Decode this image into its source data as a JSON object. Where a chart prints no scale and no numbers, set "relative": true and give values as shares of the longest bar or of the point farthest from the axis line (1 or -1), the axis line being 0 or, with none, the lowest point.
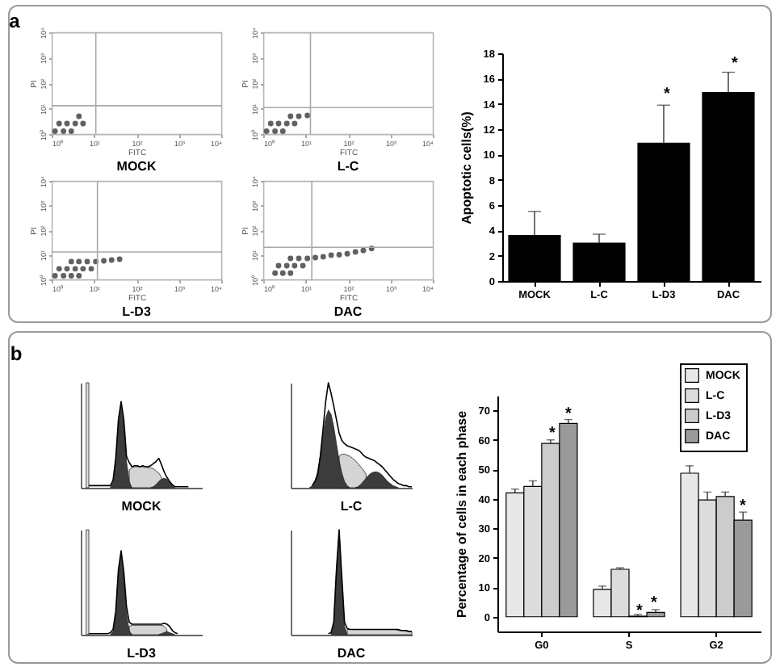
{
  "chart_data": [
    {
      "type": "scatter",
      "title": "MOCK",
      "xlabel": "FITC",
      "ylabel": "PI",
      "annotations": [
        "a"
      ],
      "log": "xy",
      "xlim": [
        1,
        10000
      ],
      "ylim": [
        1,
        10000
      ],
      "xticks": [
        {
          "value": 1,
          "label": "10⁰"
        },
        {
          "value": 10,
          "label": "10¹"
        },
        {
          "value": 100,
          "label": "10²"
        },
        {
          "value": 1000,
          "label": "10³"
        },
        {
          "value": 10000,
          "label": "10⁴"
        }
      ],
      "yticks": [
        {
          "value": 1,
          "label": "10⁰"
        },
        {
          "value": 10,
          "label": "10¹"
        },
        {
          "value": 100,
          "label": "10²"
        },
        {
          "value": 1000,
          "label": "10³"
        },
        {
          "value": 10000,
          "label": "10⁴"
        }
      ],
      "marker": "circle",
      "color": "#505050",
      "ref_lines": [
        {
          "axis": "x",
          "value": 11
        },
        {
          "axis": "y",
          "value": 13
        }
      ],
      "x": [
        1.2,
        1.9,
        2.9,
        1.5,
        2.3,
        3.6,
        5.5,
        4.4
      ],
      "values": [
        1.3,
        1.3,
        1.3,
        2.6,
        2.6,
        2.6,
        2.6,
        5
      ]
    },
    {
      "type": "scatter",
      "title": "L-C",
      "xlabel": "FITC",
      "ylabel": "PI",
      "log": "xy",
      "xlim": [
        1,
        10000
      ],
      "ylim": [
        1,
        10000
      ],
      "xticks": [
        {
          "value": 1,
          "label": "10⁰"
        },
        {
          "value": 10,
          "label": "10¹"
        },
        {
          "value": 100,
          "label": "10²"
        },
        {
          "value": 1000,
          "label": "10³"
        },
        {
          "value": 10000,
          "label": "10⁴"
        }
      ],
      "yticks": [
        {
          "value": 1,
          "label": "10⁰"
        },
        {
          "value": 10,
          "label": "10¹"
        },
        {
          "value": 100,
          "label": "10²"
        },
        {
          "value": 1000,
          "label": "10³"
        },
        {
          "value": 10000,
          "label": "10⁴"
        }
      ],
      "marker": "circle",
      "color": "#505050",
      "ref_lines": [
        {
          "axis": "x",
          "value": 13
        },
        {
          "axis": "y",
          "value": 11
        }
      ],
      "x": [
        1.2,
        1.9,
        2.9,
        1.5,
        2.3,
        3.6,
        5.5,
        4.4,
        6.9,
        11
      ],
      "values": [
        1.3,
        1.3,
        1.3,
        2.6,
        2.6,
        2.6,
        2.6,
        5,
        5,
        5.4
      ]
    },
    {
      "type": "bar",
      "ylabel": "Apoptotic cells(%)",
      "categories": [
        "MOCK",
        "L-C",
        "L-D3",
        "DAC"
      ],
      "values": [
        3.6,
        3.0,
        10.9,
        14.9
      ],
      "errors": [
        [
          3.6,
          5.5
        ],
        [
          3.0,
          3.7
        ],
        [
          10.9,
          13.9
        ],
        [
          14.9,
          16.5
        ]
      ],
      "color": "#000000",
      "ylim": [
        0,
        18
      ],
      "yticks": [
        0,
        2,
        4,
        6,
        8,
        10,
        12,
        14,
        16,
        18
      ],
      "annotations": [
        "*",
        "*"
      ]
    },
    {
      "type": "scatter",
      "title": "L-D3",
      "xlabel": "FITC",
      "ylabel": "PI",
      "log": "xy",
      "xlim": [
        1,
        10000
      ],
      "ylim": [
        1,
        10000
      ],
      "xticks": [
        {
          "value": 1,
          "label": "10⁰"
        },
        {
          "value": 10,
          "label": "10¹"
        },
        {
          "value": 100,
          "label": "10²"
        },
        {
          "value": 1000,
          "label": "10³"
        },
        {
          "value": 10000,
          "label": "10⁴"
        }
      ],
      "yticks": [
        {
          "value": 1,
          "label": "10⁰"
        },
        {
          "value": 10,
          "label": "10¹"
        },
        {
          "value": 100,
          "label": "10²"
        },
        {
          "value": 1000,
          "label": "10³"
        },
        {
          "value": 10000,
          "label": "10⁴"
        }
      ],
      "marker": "circle",
      "color": "#505050",
      "ref_lines": [
        {
          "axis": "x",
          "value": 12
        },
        {
          "axis": "y",
          "value": 13
        }
      ],
      "x": [
        1.2,
        1.9,
        2.9,
        4.4,
        1.5,
        2.3,
        3.6,
        5.5,
        8.6,
        2.9,
        4.4,
        6.9,
        11,
        17,
        26,
        40
      ],
      "values": [
        1.4,
        1.4,
        1.4,
        1.4,
        2.7,
        2.7,
        2.7,
        2.7,
        2.7,
        5.3,
        5.3,
        5.3,
        5.3,
        5.7,
        6.1,
        6.6
      ]
    },
    {
      "type": "scatter",
      "title": "DAC",
      "xlabel": "FITC",
      "ylabel": "PI",
      "log": "xy",
      "xlim": [
        1,
        10000
      ],
      "ylim": [
        1,
        10000
      ],
      "xticks": [
        {
          "value": 1,
          "label": "10⁰"
        },
        {
          "value": 10,
          "label": "10¹"
        },
        {
          "value": 100,
          "label": "10²"
        },
        {
          "value": 1000,
          "label": "10³"
        },
        {
          "value": 10000,
          "label": "10⁴"
        }
      ],
      "yticks": [
        {
          "value": 1,
          "label": "10⁰"
        },
        {
          "value": 10,
          "label": "10¹"
        },
        {
          "value": 100,
          "label": "10²"
        },
        {
          "value": 1000,
          "label": "10³"
        },
        {
          "value": 10000,
          "label": "10⁴"
        }
      ],
      "marker": "circle",
      "color": "#505050",
      "ref_lines": [
        {
          "axis": "x",
          "value": 14
        },
        {
          "axis": "y",
          "value": 20
        }
      ],
      "x": [
        1.9,
        2.9,
        4.4,
        2.3,
        3.6,
        5.5,
        8.6,
        4.4,
        6.9,
        11,
        17,
        26,
        40,
        62,
        96,
        150,
        230,
        360
      ],
      "values": [
        1.8,
        1.8,
        1.8,
        3.6,
        3.6,
        3.6,
        3.6,
        7.1,
        7.1,
        7.1,
        7.7,
        8.3,
        9.6,
        10,
        11,
        13,
        15,
        18
      ]
    },
    {
      "type": "area",
      "title": "MOCK",
      "relative": true,
      "annotations": [
        "b"
      ],
      "categories": [
        null,
        null,
        null,
        null,
        null,
        null,
        null,
        null,
        null,
        null,
        null,
        null,
        null,
        null,
        null,
        null,
        null,
        null,
        null,
        null,
        null,
        null,
        null,
        null,
        null,
        null,
        null,
        null,
        null,
        null,
        null,
        null,
        null,
        null,
        null,
        null,
        null,
        null,
        null,
        null,
        null,
        null,
        null,
        null,
        null,
        null
      ],
      "series": [
        {
          "color": "#e0e0e0",
          "values": [
            null,
            null,
            1,
            1,
            null,
            null,
            null,
            null,
            null,
            null,
            null,
            null,
            null,
            null,
            null,
            null,
            null,
            null,
            null,
            null,
            null,
            null,
            null,
            null,
            null,
            null,
            null,
            null,
            null,
            null,
            null,
            null,
            null,
            null,
            null,
            null,
            null,
            null,
            null,
            null,
            null,
            null,
            null,
            null,
            null,
            null
          ]
        },
        {
          "color": "#d4d4d4",
          "values": [
            null,
            null,
            null,
            null,
            null,
            null,
            null,
            null,
            null,
            null,
            null,
            null,
            null,
            null,
            null,
            null,
            null,
            null,
            0.17,
            0.19,
            0.2,
            0.2,
            0.2,
            0.2,
            0.2,
            0.19,
            0.19,
            0.18,
            0.16,
            0.14,
            0.1,
            null,
            null,
            null,
            null,
            null,
            null,
            null,
            null,
            null,
            null,
            null,
            null,
            null,
            null,
            null
          ]
        },
        {
          "color": "#3c3c3c",
          "values": [
            null,
            null,
            null,
            null,
            null,
            null,
            null,
            null,
            null,
            null,
            null,
            0,
            0.05,
            0.25,
            0.6,
            0.78,
            0.6,
            0.25,
            0.06,
            0,
            null,
            null,
            null,
            null,
            null,
            null,
            null,
            null,
            null,
            null,
            null,
            null,
            null,
            null,
            null,
            null,
            null,
            null,
            null,
            null,
            null,
            null,
            null,
            null,
            null,
            null
          ]
        },
        {
          "color": "#3c3c3c",
          "values": [
            null,
            null,
            null,
            null,
            null,
            null,
            null,
            null,
            null,
            null,
            null,
            null,
            null,
            null,
            null,
            null,
            null,
            null,
            null,
            null,
            null,
            null,
            null,
            null,
            null,
            null,
            0,
            0.01,
            0.03,
            0.06,
            0.08,
            0.09,
            0.08,
            0.05,
            0.02,
            0,
            null,
            null,
            null,
            null,
            null,
            null,
            null,
            null,
            null,
            null
          ]
        },
        {
          "type": "line",
          "color": "#000000",
          "values": [
            null,
            null,
            null,
            0.02,
            0.02,
            0.02,
            0.02,
            0.02,
            0.02,
            0.02,
            0.02,
            0.02,
            0.07,
            0.28,
            0.65,
            0.82,
            0.65,
            0.3,
            0.24,
            0.2,
            0.21,
            0.21,
            0.2,
            0.21,
            0.2,
            0.2,
            0.21,
            0.23,
            0.25,
            0.28,
            0.22,
            0.15,
            0.1,
            0.06,
            0.03,
            0.01,
            0.01,
            0.01,
            0.01,
            0.01,
            0.01,
            null,
            null,
            null,
            null,
            null
          ]
        }
      ]
    },
    {
      "type": "area",
      "title": "L-C",
      "relative": true,
      "categories": [
        null,
        null,
        null,
        null,
        null,
        null,
        null,
        null,
        null,
        null,
        null,
        null,
        null,
        null,
        null,
        null,
        null,
        null,
        null,
        null,
        null,
        null,
        null,
        null,
        null,
        null,
        null,
        null,
        null,
        null,
        null,
        null,
        null,
        null,
        null,
        null,
        null,
        null,
        null,
        null,
        null,
        null,
        null,
        null,
        null,
        null
      ],
      "series": [
        {
          "color": "#d4d4d4",
          "values": [
            null,
            null,
            null,
            null,
            null,
            null,
            null,
            null,
            null,
            null,
            null,
            null,
            null,
            null,
            null,
            null,
            null,
            null,
            0.3,
            0.32,
            0.32,
            0.31,
            0.3,
            0.28,
            0.26,
            0.23,
            0.2,
            0.17,
            0.13,
            null,
            null,
            null,
            null,
            null,
            null,
            null,
            null,
            null,
            null,
            null,
            null,
            null,
            null,
            null,
            null,
            null
          ]
        },
        {
          "color": "#3c3c3c",
          "values": [
            null,
            null,
            null,
            null,
            null,
            null,
            null,
            0,
            0.02,
            0.06,
            0.15,
            0.3,
            0.5,
            0.66,
            0.74,
            0.7,
            0.58,
            0.42,
            0.26,
            0.14,
            0.06,
            0.02,
            0,
            null,
            null,
            null,
            null,
            null,
            null,
            null,
            null,
            null,
            null,
            null,
            null,
            null,
            null,
            null,
            null,
            null,
            null,
            null,
            null,
            null,
            null,
            null
          ]
        },
        {
          "color": "#3c3c3c",
          "values": [
            null,
            null,
            null,
            null,
            null,
            null,
            null,
            null,
            null,
            null,
            null,
            null,
            null,
            null,
            null,
            null,
            null,
            null,
            null,
            null,
            null,
            null,
            null,
            null,
            0,
            0.01,
            0.03,
            0.06,
            0.09,
            0.12,
            0.14,
            0.15,
            0.15,
            0.14,
            0.12,
            0.09,
            0.06,
            0.04,
            0.02,
            0.01,
            0,
            null,
            null,
            null,
            null,
            null
          ]
        },
        {
          "type": "line",
          "color": "#000000",
          "values": [
            null,
            null,
            null,
            null,
            null,
            null,
            null,
            null,
            0.02,
            0.06,
            0.12,
            0.3,
            0.55,
            0.82,
            1,
            0.9,
            0.78,
            0.65,
            0.52,
            0.45,
            0.42,
            0.4,
            0.39,
            0.38,
            0.37,
            0.36,
            0.34,
            0.31,
            0.29,
            0.28,
            0.27,
            0.26,
            0.24,
            0.22,
            0.2,
            0.17,
            0.14,
            0.11,
            0.08,
            0.06,
            0.04,
            0.03,
            0.02,
            0.02,
            0.01,
            0.01
          ]
        }
      ]
    },
    {
      "type": "area",
      "title": "L-D3",
      "relative": true,
      "categories": [
        null,
        null,
        null,
        null,
        null,
        null,
        null,
        null,
        null,
        null,
        null,
        null,
        null,
        null,
        null,
        null,
        null,
        null,
        null,
        null,
        null,
        null,
        null,
        null,
        null,
        null,
        null,
        null,
        null,
        null,
        null,
        null,
        null,
        null,
        null,
        null,
        null,
        null,
        null,
        null,
        null,
        null,
        null,
        null,
        null,
        null
      ],
      "series": [
        {
          "color": "#e0e0e0",
          "values": [
            null,
            null,
            1,
            1,
            null,
            null,
            null,
            null,
            null,
            null,
            null,
            null,
            null,
            null,
            null,
            null,
            null,
            null,
            null,
            null,
            null,
            null,
            null,
            null,
            null,
            null,
            null,
            null,
            null,
            null,
            null,
            null,
            null,
            null,
            null,
            null,
            null,
            null,
            null,
            null,
            null,
            null,
            null,
            null,
            null,
            null
          ]
        },
        {
          "color": "#d4d4d4",
          "values": [
            null,
            null,
            null,
            null,
            null,
            null,
            null,
            null,
            null,
            null,
            null,
            null,
            null,
            null,
            null,
            null,
            null,
            null,
            0.08,
            0.09,
            0.09,
            0.09,
            0.09,
            0.09,
            0.09,
            0.09,
            0.09,
            0.09,
            0.09,
            0.09,
            0.09,
            0.08,
            0.05,
            null,
            null,
            null,
            null,
            null,
            null,
            null,
            null,
            null,
            null,
            null,
            null,
            null
          ]
        },
        {
          "color": "#3c3c3c",
          "values": [
            null,
            null,
            null,
            null,
            null,
            null,
            null,
            null,
            null,
            null,
            null,
            0,
            0.03,
            0.2,
            0.6,
            0.77,
            0.55,
            0.2,
            0.04,
            0,
            null,
            null,
            null,
            null,
            null,
            null,
            null,
            null,
            null,
            null,
            null,
            null,
            null,
            null,
            null,
            null,
            null,
            null,
            null,
            null,
            null,
            null,
            null,
            null,
            null,
            null
          ]
        },
        {
          "color": "#3c3c3c",
          "values": [
            null,
            null,
            null,
            null,
            null,
            null,
            null,
            null,
            null,
            null,
            null,
            null,
            null,
            null,
            null,
            null,
            null,
            null,
            null,
            null,
            null,
            null,
            null,
            null,
            null,
            null,
            null,
            null,
            null,
            0,
            0.01,
            0.02,
            0.03,
            0.02,
            0.01,
            0,
            null,
            null,
            null,
            null,
            null,
            null,
            null,
            null,
            null,
            null
          ]
        },
        {
          "type": "line",
          "color": "#000000",
          "values": [
            null,
            null,
            null,
            0.01,
            0.01,
            0.01,
            0.01,
            0.01,
            0.01,
            0.01,
            0.01,
            0.02,
            0.05,
            0.22,
            0.62,
            0.8,
            0.6,
            0.27,
            0.12,
            0.1,
            0.1,
            0.1,
            0.1,
            0.1,
            0.1,
            0.1,
            0.1,
            0.1,
            0.1,
            0.1,
            0.1,
            0.11,
            0.1,
            0.08,
            0.04,
            0.02,
            0.01,
            null,
            null,
            null,
            null,
            null,
            null,
            null,
            null,
            null
          ]
        }
      ]
    },
    {
      "type": "area",
      "title": "DAC",
      "relative": true,
      "categories": [
        null,
        null,
        null,
        null,
        null,
        null,
        null,
        null,
        null,
        null,
        null,
        null,
        null,
        null,
        null,
        null,
        null,
        null,
        null,
        null,
        null,
        null,
        null,
        null,
        null,
        null,
        null,
        null,
        null,
        null,
        null,
        null,
        null,
        null,
        null,
        null,
        null,
        null,
        null,
        null,
        null,
        null,
        null,
        null,
        null,
        null
      ],
      "series": [
        {
          "color": "#d4d4d4",
          "values": [
            null,
            null,
            null,
            null,
            null,
            null,
            null,
            null,
            null,
            null,
            null,
            null,
            null,
            null,
            null,
            null,
            null,
            null,
            null,
            null,
            null,
            0.05,
            0.05,
            0.05,
            0.05,
            0.05,
            0.05,
            0.05,
            0.05,
            0.05,
            0.05,
            0.05,
            0.05,
            0.05,
            0.05,
            0.05,
            0.05,
            0.05,
            0.05,
            0.05,
            0.04,
            0.04,
            0.04,
            0.03,
            0.03,
            0.03
          ]
        },
        {
          "color": "#3c3c3c",
          "values": [
            null,
            null,
            null,
            null,
            null,
            null,
            null,
            null,
            null,
            null,
            null,
            null,
            null,
            null,
            null,
            0,
            0.1,
            0.6,
            0.97,
            0.5,
            0.08,
            0,
            null,
            null,
            null,
            null,
            null,
            null,
            null,
            null,
            null,
            null,
            null,
            null,
            null,
            null,
            null,
            null,
            null,
            null,
            null,
            null,
            null,
            null,
            null,
            null
          ]
        },
        {
          "type": "line",
          "color": "#000000",
          "values": [
            null,
            null,
            null,
            null,
            null,
            null,
            null,
            null,
            null,
            null,
            null,
            null,
            null,
            null,
            0.01,
            0.02,
            0.12,
            0.62,
            1,
            0.55,
            0.12,
            0.06,
            0.05,
            0.05,
            0.05,
            0.05,
            0.05,
            0.05,
            0.05,
            0.05,
            0.05,
            0.05,
            0.05,
            0.05,
            0.05,
            0.05,
            0.05,
            0.05,
            0.05,
            0.05,
            0.05,
            0.04,
            0.04,
            0.04,
            0.03,
            0.03
          ]
        }
      ]
    },
    {
      "type": "bar",
      "ylabel": "Percentage of cells in each phase",
      "categories": [
        "G0",
        "S",
        "G2"
      ],
      "legend": "top right",
      "ylim": [
        -5,
        75
      ],
      "yticks": [
        0,
        10,
        20,
        30,
        40,
        50,
        60,
        70
      ],
      "series": [
        {
          "name": "MOCK",
          "color": "#e8e8e8",
          "values": [
            42,
            9.3,
            48.7
          ],
          "errors": [
            [
              42,
              43.3
            ],
            [
              9.3,
              10.4
            ],
            [
              48.7,
              51.2
            ]
          ]
        },
        {
          "name": "L-C",
          "color": "#dcdcdc",
          "values": [
            44.2,
            16.1,
            39.6
          ],
          "errors": [
            [
              44.2,
              46.1
            ],
            [
              16.1,
              16.6
            ],
            [
              39.6,
              42.3
            ]
          ]
        },
        {
          "name": "L-D3",
          "color": "#cccccc",
          "values": [
            58.8,
            0.2,
            40.8
          ],
          "errors": [
            [
              58.8,
              60
            ],
            [
              0.2,
              0.8
            ],
            [
              40.8,
              42.3
            ]
          ]
        },
        {
          "name": "DAC",
          "color": "#9a9a9a",
          "values": [
            65.6,
            1.5,
            32.8
          ],
          "errors": [
            [
              65.6,
              66.9
            ],
            [
              1.5,
              2.4
            ],
            [
              32.8,
              35.5
            ]
          ]
        }
      ],
      "annotations": [
        "*",
        "*",
        "*",
        "*",
        "*"
      ]
    }
  ]
}
